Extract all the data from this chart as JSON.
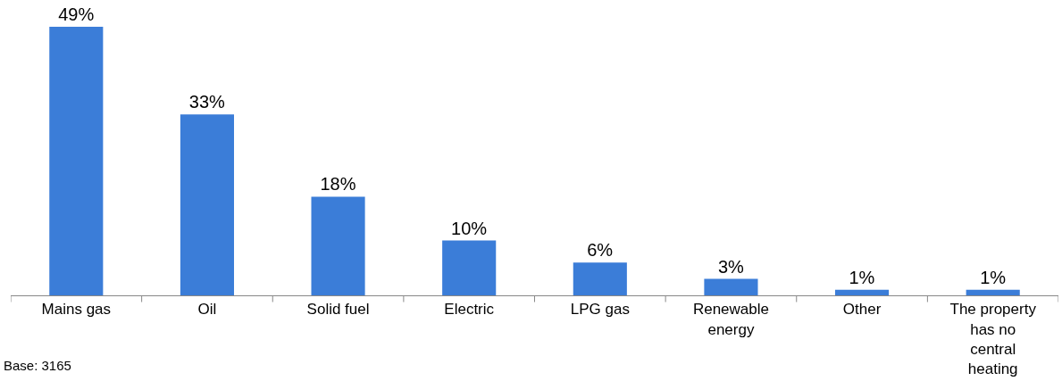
{
  "chart_data": {
    "type": "bar",
    "categories": [
      "Mains gas",
      "Oil",
      "Solid fuel",
      "Electric",
      "LPG gas",
      "Renewable energy",
      "Other",
      "The property has no central heating"
    ],
    "values": [
      49,
      33,
      18,
      10,
      6,
      3,
      1,
      1
    ],
    "value_labels": [
      "49%",
      "33%",
      "18%",
      "10%",
      "6%",
      "3%",
      "1%",
      "1%"
    ],
    "color": "#3b7dd8",
    "annotations": [
      "Base: 3165"
    ]
  }
}
